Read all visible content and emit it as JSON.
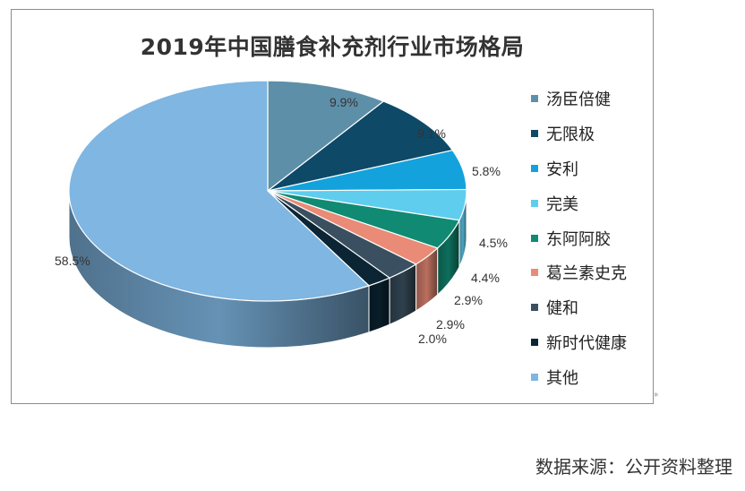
{
  "chart_data": {
    "type": "pie",
    "title": "2019年中国膳食补充剂行业市场格局",
    "slices": [
      {
        "name": "汤臣倍健",
        "value": 9.9,
        "label": "9.9%",
        "color": "#5e8fa8"
      },
      {
        "name": "无限极",
        "value": 9.1,
        "label": "9.1%",
        "color": "#0e4a68"
      },
      {
        "name": "安利",
        "value": 5.8,
        "label": "5.8%",
        "color": "#13a2dc"
      },
      {
        "name": "完美",
        "value": 4.5,
        "label": "4.5%",
        "color": "#5fcdee"
      },
      {
        "name": "东阿阿胶",
        "value": 4.4,
        "label": "4.4%",
        "color": "#118a73"
      },
      {
        "name": "葛兰素史克",
        "value": 2.9,
        "label": "2.9%",
        "color": "#e98b76"
      },
      {
        "name": "健和",
        "value": 2.9,
        "label": "2.9%",
        "color": "#3a5060"
      },
      {
        "name": "新时代健康",
        "value": 2.0,
        "label": "2.0%",
        "color": "#0b2535"
      },
      {
        "name": "其他",
        "value": 58.5,
        "label": "58.5%",
        "color": "#7fb6e2"
      }
    ],
    "legend_position": "right"
  },
  "source_note": "数据来源：公开资料整理",
  "corner_mark": "*"
}
